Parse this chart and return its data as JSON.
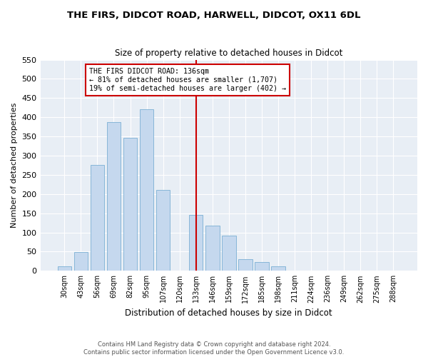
{
  "title": "THE FIRS, DIDCOT ROAD, HARWELL, DIDCOT, OX11 6DL",
  "subtitle": "Size of property relative to detached houses in Didcot",
  "xlabel": "Distribution of detached houses by size in Didcot",
  "ylabel": "Number of detached properties",
  "bar_labels": [
    "30sqm",
    "43sqm",
    "56sqm",
    "69sqm",
    "82sqm",
    "95sqm",
    "107sqm",
    "120sqm",
    "133sqm",
    "146sqm",
    "159sqm",
    "172sqm",
    "185sqm",
    "198sqm",
    "211sqm",
    "224sqm",
    "236sqm",
    "249sqm",
    "262sqm",
    "275sqm",
    "288sqm"
  ],
  "bar_values": [
    12,
    48,
    275,
    388,
    347,
    420,
    211,
    0,
    145,
    118,
    92,
    31,
    23,
    12,
    0,
    0,
    0,
    0,
    0,
    0,
    0
  ],
  "bar_color": "#c5d8ee",
  "bar_edge_color": "#7aafd4",
  "vline_x_idx": 8,
  "vline_color": "#cc0000",
  "annotation_title": "THE FIRS DIDCOT ROAD: 136sqm",
  "annotation_line1": "← 81% of detached houses are smaller (1,707)",
  "annotation_line2": "19% of semi-detached houses are larger (402) →",
  "annotation_box_edgecolor": "#cc0000",
  "footer1": "Contains HM Land Registry data © Crown copyright and database right 2024.",
  "footer2": "Contains public sector information licensed under the Open Government Licence v3.0.",
  "ylim": [
    0,
    550
  ],
  "yticks": [
    0,
    50,
    100,
    150,
    200,
    250,
    300,
    350,
    400,
    450,
    500,
    550
  ],
  "fig_bg": "#ffffff",
  "plot_bg": "#e8eef5"
}
